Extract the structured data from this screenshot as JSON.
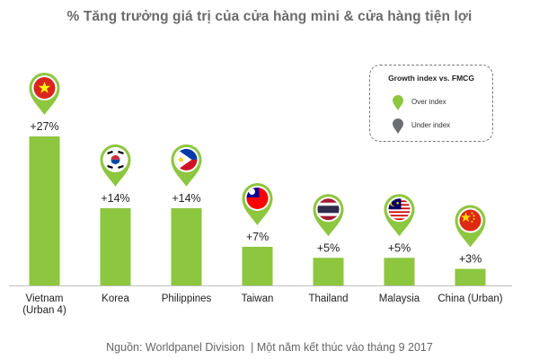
{
  "title": "% Tăng trưởng giá trị của cửa hàng mini & cửa hàng tiện lợi",
  "legend": {
    "title": "Growth index vs. FMCG",
    "over_label": "Over index",
    "under_label": "Under index",
    "over_color": "#8dc63f",
    "under_color": "#6d6e71"
  },
  "footer": {
    "source": "Nguồn: Worldpanel Division",
    "separator": "|",
    "period": "Một năm kết thúc vào tháng 9 2017"
  },
  "colors": {
    "bar": "#8dc63f",
    "axis": "#bfbfbf",
    "text": "#222222"
  },
  "chart_data": {
    "type": "bar",
    "title": "% Tăng trưởng giá trị của cửa hàng mini & cửa hàng tiện lợi",
    "categories": [
      [
        "Vietnam",
        "(Urban 4)"
      ],
      [
        "Korea"
      ],
      [
        "Philippines"
      ],
      [
        "Taiwan"
      ],
      [
        "Thailand"
      ],
      [
        "Malaysia"
      ],
      [
        "China (Urban)"
      ]
    ],
    "values": [
      27,
      14,
      14,
      7,
      5,
      5,
      3
    ],
    "labels": [
      "+27%",
      "+14%",
      "+14%",
      "+7%",
      "+5%",
      "+5%",
      "+3%"
    ],
    "flags": [
      "vietnam-flag",
      "korea-flag",
      "philippines-flag",
      "taiwan-flag",
      "thailand-flag",
      "malaysia-flag",
      "china-flag"
    ],
    "ylim": [
      0,
      30
    ],
    "xlabel": "",
    "ylabel": ""
  }
}
